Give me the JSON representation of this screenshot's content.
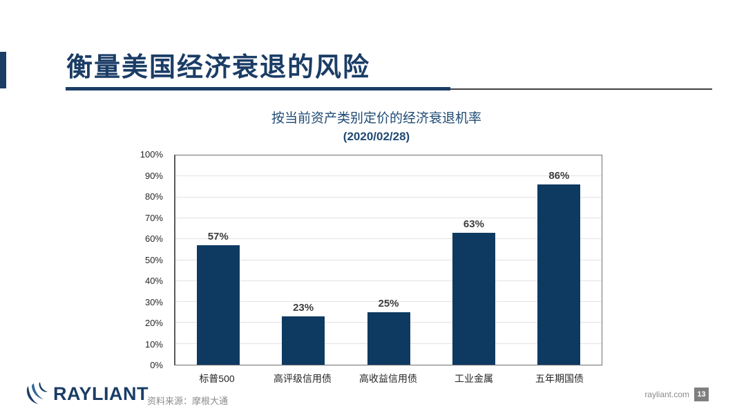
{
  "slide": {
    "title": "衡量美国经济衰退的风险",
    "source": "资料来源：摩根大通",
    "website": "rayliant.com",
    "page_number": "13",
    "logo_text": "RAYLIANT"
  },
  "colors": {
    "navy": "#1b3d66",
    "bar_navy": "#0e3a62",
    "chart_title_blue": "#1f4a73",
    "gridline_gray": "#e2e2e2",
    "source_gray": "#8c8c8c",
    "page_box_gray": "#7f7f7f"
  },
  "chart_data": {
    "type": "bar",
    "title": "按当前资产类别定价的经济衰退机率",
    "subtitle": "(2020/02/28)",
    "categories": [
      "标普500",
      "高评级信用债",
      "高收益信用债",
      "工业金属",
      "五年期国债"
    ],
    "values": [
      57,
      23,
      25,
      63,
      86
    ],
    "data_labels": [
      "57%",
      "23%",
      "25%",
      "63%",
      "86%"
    ],
    "ylim": [
      0,
      100
    ],
    "ytick_step": 10,
    "ytick_labels": [
      "0%",
      "10%",
      "20%",
      "30%",
      "40%",
      "50%",
      "60%",
      "70%",
      "80%",
      "90%",
      "100%"
    ],
    "grid": true,
    "legend": false,
    "bar_color": "#0e3a62",
    "xlabel": "",
    "ylabel": ""
  }
}
